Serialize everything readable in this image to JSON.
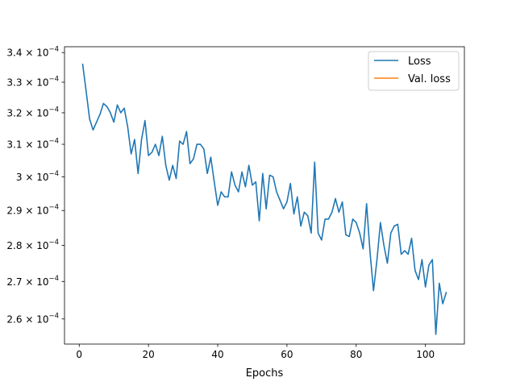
{
  "chart_data": {
    "type": "line",
    "title": "",
    "xlabel": "Epochs",
    "ylabel": "",
    "y_scale": "log",
    "xlim": [
      -4.25,
      111.25
    ],
    "ylim": [
      0.0002535,
      0.000342
    ],
    "grid": false,
    "legend_position": "top-right",
    "x_ticks": [
      0,
      20,
      40,
      60,
      80,
      100
    ],
    "y_ticks": [
      {
        "value": 0.00026,
        "mantissa": "2.6",
        "exponent": "−4"
      },
      {
        "value": 0.00027,
        "mantissa": "2.7",
        "exponent": "−4"
      },
      {
        "value": 0.00028,
        "mantissa": "2.8",
        "exponent": "−4"
      },
      {
        "value": 0.00029,
        "mantissa": "2.9",
        "exponent": "−4"
      },
      {
        "value": 0.0003,
        "mantissa": "3",
        "exponent": "−4"
      },
      {
        "value": 0.00031,
        "mantissa": "3.1",
        "exponent": "−4"
      },
      {
        "value": 0.00032,
        "mantissa": "3.2",
        "exponent": "−4"
      },
      {
        "value": 0.00033,
        "mantissa": "3.3",
        "exponent": "−4"
      },
      {
        "value": 0.00034,
        "mantissa": "3.4",
        "exponent": "−4"
      }
    ],
    "y_tick_base": "× 10",
    "series": [
      {
        "name": "Loss",
        "color": "#1f77b4",
        "x": [
          1,
          2,
          3,
          4,
          5,
          6,
          7,
          8,
          9,
          10,
          11,
          12,
          13,
          14,
          15,
          16,
          17,
          18,
          19,
          20,
          21,
          22,
          23,
          24,
          25,
          26,
          27,
          28,
          29,
          30,
          31,
          32,
          33,
          34,
          35,
          36,
          37,
          38,
          39,
          40,
          41,
          42,
          43,
          44,
          45,
          46,
          47,
          48,
          49,
          50,
          51,
          52,
          53,
          54,
          55,
          56,
          57,
          58,
          59,
          60,
          61,
          62,
          63,
          64,
          65,
          66,
          67,
          68,
          69,
          70,
          71,
          72,
          73,
          74,
          75,
          76,
          77,
          78,
          79,
          80,
          81,
          82,
          83,
          84,
          85,
          86,
          87,
          88,
          89,
          90,
          91,
          92,
          93,
          94,
          95,
          96,
          97,
          98,
          99,
          100,
          101,
          102,
          103,
          104,
          105,
          106
        ],
        "y": [
          0.000336,
          0.000327,
          0.000318,
          0.0003145,
          0.000317,
          0.0003195,
          0.000323,
          0.000322,
          0.00032,
          0.000317,
          0.0003225,
          0.00032,
          0.0003215,
          0.0003155,
          0.000307,
          0.0003115,
          0.000301,
          0.0003115,
          0.0003175,
          0.0003065,
          0.0003075,
          0.00031,
          0.0003065,
          0.0003125,
          0.0003035,
          0.000299,
          0.0003035,
          0.0002995,
          0.000311,
          0.00031,
          0.000314,
          0.000304,
          0.0003055,
          0.00031,
          0.00031,
          0.0003085,
          0.000301,
          0.000306,
          0.0002985,
          0.0002915,
          0.0002955,
          0.000294,
          0.000294,
          0.0003015,
          0.0002975,
          0.0002955,
          0.0003015,
          0.000297,
          0.0003035,
          0.0002975,
          0.0002985,
          0.000287,
          0.000301,
          0.0002905,
          0.0003005,
          0.0003,
          0.0002955,
          0.000293,
          0.0002905,
          0.0002925,
          0.000298,
          0.000289,
          0.000294,
          0.0002855,
          0.0002895,
          0.0002885,
          0.0002835,
          0.0003045,
          0.0002835,
          0.0002815,
          0.0002875,
          0.0002875,
          0.0002895,
          0.0002935,
          0.0002895,
          0.0002925,
          0.000283,
          0.0002825,
          0.0002875,
          0.0002865,
          0.0002835,
          0.000279,
          0.000292,
          0.000278,
          0.0002675,
          0.000276,
          0.0002865,
          0.00028,
          0.000275,
          0.0002835,
          0.0002855,
          0.000286,
          0.0002775,
          0.0002785,
          0.0002775,
          0.000282,
          0.000273,
          0.0002705,
          0.000276,
          0.0002685,
          0.0002745,
          0.000276,
          0.000256,
          0.0002695,
          0.000264,
          0.000267
        ]
      },
      {
        "name": "Val. loss",
        "color": "#ff7f0e",
        "x": [],
        "y": []
      }
    ]
  }
}
